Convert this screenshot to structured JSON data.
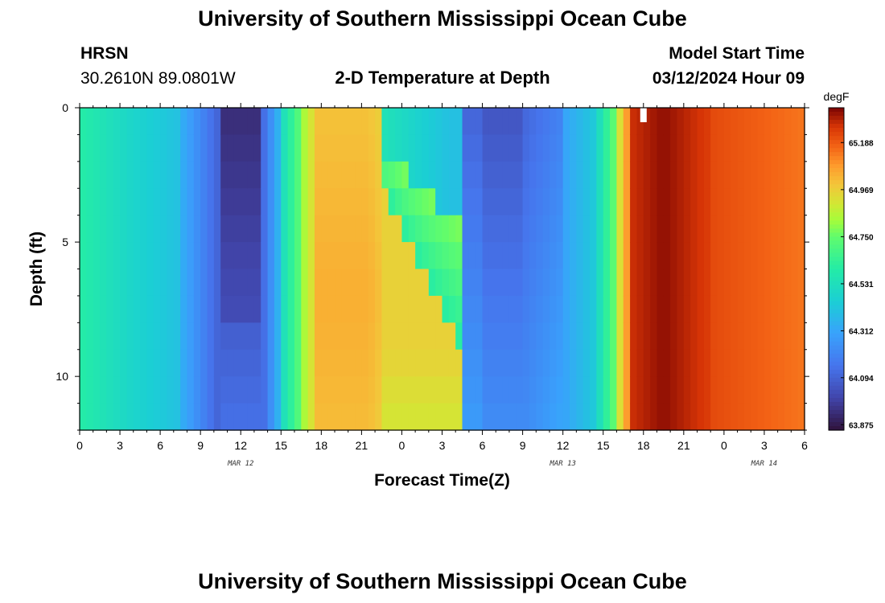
{
  "header": {
    "title": "University of Southern Mississippi Ocean Cube",
    "station": "HRSN",
    "coords": "30.2610N  89.0801W",
    "plot_title": "2-D Temperature at Depth",
    "model_label": "Model Start Time",
    "model_time": "03/12/2024 Hour 09"
  },
  "footer": {
    "title": "University of Southern Mississippi Ocean Cube"
  },
  "chart_data": {
    "type": "heatmap",
    "title": "2-D Temperature at Depth",
    "xlabel": "Forecast Time(Z)",
    "ylabel": "Depth (ft)",
    "x_tick_labels": [
      "0",
      "3",
      "6",
      "9",
      "12",
      "15",
      "18",
      "21",
      "0",
      "3",
      "6",
      "9",
      "12",
      "15",
      "18",
      "21",
      "0",
      "3",
      "6"
    ],
    "x_range_hours": [
      0,
      54
    ],
    "date_labels": [
      {
        "label": "MAR 12",
        "hour": 12
      },
      {
        "label": "MAR 13",
        "hour": 36
      },
      {
        "label": "MAR 14",
        "hour": 51
      }
    ],
    "y_tick_labels": [
      "0",
      "5",
      "10"
    ],
    "y_range": [
      0,
      12
    ],
    "colorbar": {
      "unit": "degF",
      "labels": [
        "65.188",
        "64.969",
        "64.750",
        "64.531",
        "64.312",
        "64.094",
        "63.875"
      ],
      "range": [
        63.85,
        65.35
      ]
    },
    "now_marker_hour": 42,
    "description_of_field": "Cold column near hour 11-13 in upper layers, warm band hours 17-23, two-layer structure hours 24-30, cold surface minimum around hour 32, sharp warming after hour 40 to maximum around hour 42-46."
  }
}
